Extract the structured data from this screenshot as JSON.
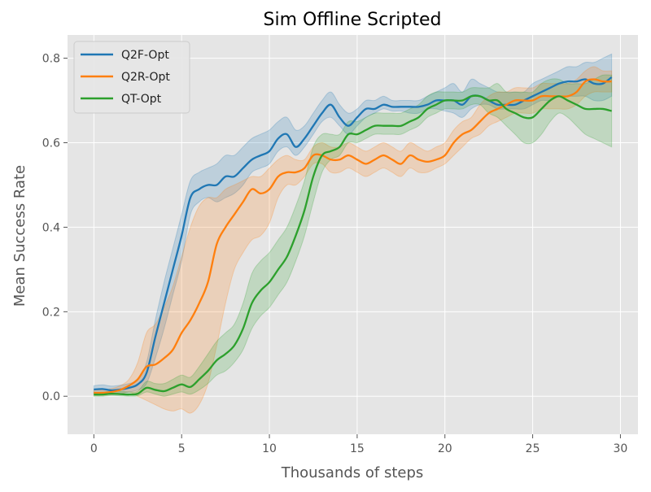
{
  "chart_data": {
    "type": "line",
    "title": "Sim Offline Scripted",
    "xlabel": "Thousands of steps",
    "ylabel": "Mean Success Rate",
    "xlim": [
      -1.5,
      31.0
    ],
    "ylim": [
      -0.09,
      0.855
    ],
    "xticks": [
      0,
      5,
      10,
      15,
      20,
      25,
      30
    ],
    "yticks": [
      0.0,
      0.2,
      0.4,
      0.6,
      0.8
    ],
    "xtick_labels": [
      "0",
      "5",
      "10",
      "15",
      "20",
      "25",
      "30"
    ],
    "ytick_labels": [
      "0.0",
      "0.2",
      "0.4",
      "0.6",
      "0.8"
    ],
    "grid": true,
    "legend_position": "top-left",
    "background": "#e5e5e5",
    "series": [
      {
        "name": "Q2F-Opt",
        "color": "#1f77b4",
        "x": [
          0,
          0.5,
          1,
          1.5,
          2,
          2.5,
          3,
          3.5,
          4,
          4.5,
          5,
          5.5,
          6,
          6.5,
          7,
          7.5,
          8,
          8.5,
          9,
          9.5,
          10,
          10.5,
          11,
          11.5,
          12,
          12.5,
          13,
          13.5,
          14,
          14.5,
          15,
          15.5,
          16,
          16.5,
          17,
          17.5,
          18,
          18.5,
          19,
          19.5,
          20,
          20.5,
          21,
          21.5,
          22,
          22.5,
          23,
          23.5,
          24,
          24.5,
          25,
          25.5,
          26,
          26.5,
          27,
          27.5,
          28,
          28.5,
          29,
          29.5
        ],
        "values": [
          0.016,
          0.017,
          0.014,
          0.016,
          0.02,
          0.028,
          0.055,
          0.14,
          0.22,
          0.3,
          0.38,
          0.47,
          0.49,
          0.5,
          0.5,
          0.52,
          0.52,
          0.54,
          0.56,
          0.57,
          0.58,
          0.61,
          0.62,
          0.59,
          0.61,
          0.64,
          0.67,
          0.69,
          0.66,
          0.64,
          0.66,
          0.68,
          0.68,
          0.69,
          0.685,
          0.685,
          0.685,
          0.685,
          0.69,
          0.7,
          0.7,
          0.7,
          0.69,
          0.71,
          0.71,
          0.7,
          0.69,
          0.69,
          0.69,
          0.7,
          0.71,
          0.72,
          0.73,
          0.74,
          0.745,
          0.745,
          0.75,
          0.74,
          0.74,
          0.755
        ],
        "lower": [
          0.005,
          0.006,
          0.004,
          0.006,
          0.01,
          0.015,
          0.03,
          0.09,
          0.16,
          0.24,
          0.32,
          0.43,
          0.46,
          0.47,
          0.46,
          0.47,
          0.48,
          0.5,
          0.53,
          0.54,
          0.55,
          0.58,
          0.59,
          0.57,
          0.59,
          0.62,
          0.65,
          0.66,
          0.64,
          0.62,
          0.64,
          0.66,
          0.67,
          0.68,
          0.675,
          0.675,
          0.67,
          0.67,
          0.68,
          0.68,
          0.675,
          0.67,
          0.66,
          0.68,
          0.69,
          0.69,
          0.68,
          0.68,
          0.68,
          0.68,
          0.69,
          0.7,
          0.7,
          0.71,
          0.71,
          0.71,
          0.71,
          0.7,
          0.7,
          0.71
        ],
        "upper": [
          0.025,
          0.027,
          0.024,
          0.026,
          0.03,
          0.04,
          0.08,
          0.18,
          0.27,
          0.35,
          0.43,
          0.51,
          0.53,
          0.54,
          0.55,
          0.57,
          0.57,
          0.59,
          0.61,
          0.62,
          0.63,
          0.65,
          0.66,
          0.63,
          0.64,
          0.67,
          0.7,
          0.72,
          0.69,
          0.67,
          0.68,
          0.7,
          0.7,
          0.71,
          0.7,
          0.7,
          0.7,
          0.7,
          0.71,
          0.72,
          0.73,
          0.74,
          0.72,
          0.75,
          0.74,
          0.73,
          0.72,
          0.72,
          0.72,
          0.72,
          0.74,
          0.75,
          0.76,
          0.77,
          0.78,
          0.78,
          0.79,
          0.79,
          0.8,
          0.81
        ]
      },
      {
        "name": "Q2R-Opt",
        "color": "#ff7f0e",
        "x": [
          0,
          0.5,
          1,
          1.5,
          2,
          2.5,
          3,
          3.5,
          4,
          4.5,
          5,
          5.5,
          6,
          6.5,
          7,
          7.5,
          8,
          8.5,
          9,
          9.5,
          10,
          10.5,
          11,
          11.5,
          12,
          12.5,
          13,
          13.5,
          14,
          14.5,
          15,
          15.5,
          16,
          16.5,
          17,
          17.5,
          18,
          18.5,
          19,
          19.5,
          20,
          20.5,
          21,
          21.5,
          22,
          22.5,
          23,
          23.5,
          24,
          24.5,
          25,
          25.5,
          26,
          26.5,
          27,
          27.5,
          28,
          28.5,
          29,
          29.5
        ],
        "values": [
          0.008,
          0.008,
          0.01,
          0.015,
          0.025,
          0.04,
          0.07,
          0.075,
          0.09,
          0.11,
          0.15,
          0.18,
          0.22,
          0.27,
          0.36,
          0.4,
          0.43,
          0.46,
          0.49,
          0.48,
          0.49,
          0.52,
          0.53,
          0.53,
          0.54,
          0.57,
          0.57,
          0.56,
          0.56,
          0.57,
          0.56,
          0.55,
          0.56,
          0.57,
          0.56,
          0.55,
          0.57,
          0.56,
          0.555,
          0.56,
          0.57,
          0.6,
          0.62,
          0.63,
          0.65,
          0.67,
          0.68,
          0.69,
          0.7,
          0.7,
          0.7,
          0.71,
          0.71,
          0.71,
          0.71,
          0.72,
          0.745,
          0.75,
          0.745,
          0.745
        ],
        "lower": [
          0.002,
          0.002,
          0.004,
          0.005,
          0.01,
          0.0,
          -0.01,
          -0.02,
          -0.03,
          -0.035,
          -0.03,
          -0.04,
          -0.02,
          0.03,
          0.12,
          0.22,
          0.3,
          0.34,
          0.37,
          0.38,
          0.41,
          0.47,
          0.5,
          0.5,
          0.52,
          0.55,
          0.55,
          0.53,
          0.53,
          0.54,
          0.53,
          0.52,
          0.53,
          0.54,
          0.53,
          0.52,
          0.54,
          0.53,
          0.53,
          0.54,
          0.55,
          0.57,
          0.59,
          0.61,
          0.62,
          0.64,
          0.65,
          0.66,
          0.67,
          0.67,
          0.67,
          0.68,
          0.68,
          0.68,
          0.68,
          0.69,
          0.71,
          0.72,
          0.72,
          0.72
        ],
        "upper": [
          0.015,
          0.015,
          0.018,
          0.025,
          0.04,
          0.08,
          0.15,
          0.17,
          0.21,
          0.26,
          0.33,
          0.4,
          0.45,
          0.47,
          0.47,
          0.49,
          0.5,
          0.51,
          0.52,
          0.52,
          0.54,
          0.56,
          0.57,
          0.56,
          0.56,
          0.59,
          0.6,
          0.59,
          0.59,
          0.6,
          0.59,
          0.58,
          0.59,
          0.6,
          0.59,
          0.58,
          0.6,
          0.59,
          0.58,
          0.59,
          0.6,
          0.63,
          0.65,
          0.66,
          0.69,
          0.71,
          0.72,
          0.72,
          0.73,
          0.73,
          0.73,
          0.74,
          0.74,
          0.74,
          0.74,
          0.75,
          0.77,
          0.78,
          0.77,
          0.77
        ]
      },
      {
        "name": "QT-Opt",
        "color": "#2ca02c",
        "x": [
          0,
          0.5,
          1,
          1.5,
          2,
          2.5,
          3,
          3.5,
          4,
          4.5,
          5,
          5.5,
          6,
          6.5,
          7,
          7.5,
          8,
          8.5,
          9,
          9.5,
          10,
          10.5,
          11,
          11.5,
          12,
          12.5,
          13,
          13.5,
          14,
          14.5,
          15,
          15.5,
          16,
          16.5,
          17,
          17.5,
          18,
          18.5,
          19,
          19.5,
          20,
          20.5,
          21,
          21.5,
          22,
          22.5,
          23,
          23.5,
          24,
          24.5,
          25,
          25.5,
          26,
          26.5,
          27,
          27.5,
          28,
          28.5,
          29,
          29.5
        ],
        "values": [
          0.004,
          0.004,
          0.006,
          0.005,
          0.004,
          0.006,
          0.02,
          0.015,
          0.012,
          0.02,
          0.028,
          0.022,
          0.04,
          0.06,
          0.085,
          0.1,
          0.12,
          0.16,
          0.22,
          0.25,
          0.27,
          0.3,
          0.33,
          0.38,
          0.44,
          0.52,
          0.57,
          0.58,
          0.59,
          0.62,
          0.62,
          0.63,
          0.64,
          0.64,
          0.64,
          0.64,
          0.65,
          0.66,
          0.68,
          0.69,
          0.7,
          0.7,
          0.7,
          0.71,
          0.71,
          0.7,
          0.7,
          0.68,
          0.67,
          0.66,
          0.66,
          0.68,
          0.7,
          0.71,
          0.7,
          0.69,
          0.68,
          0.68,
          0.68,
          0.675
        ],
        "lower": [
          0.0,
          0.0,
          0.002,
          0.001,
          0.0,
          0.001,
          0.01,
          0.005,
          0.0,
          0.005,
          0.01,
          0.005,
          0.015,
          0.03,
          0.05,
          0.06,
          0.08,
          0.11,
          0.16,
          0.19,
          0.21,
          0.24,
          0.27,
          0.32,
          0.38,
          0.46,
          0.53,
          0.56,
          0.57,
          0.6,
          0.6,
          0.61,
          0.62,
          0.62,
          0.62,
          0.62,
          0.63,
          0.64,
          0.66,
          0.67,
          0.68,
          0.68,
          0.68,
          0.69,
          0.69,
          0.67,
          0.66,
          0.64,
          0.62,
          0.6,
          0.6,
          0.62,
          0.65,
          0.67,
          0.66,
          0.64,
          0.62,
          0.61,
          0.6,
          0.59
        ],
        "upper": [
          0.01,
          0.01,
          0.012,
          0.012,
          0.01,
          0.012,
          0.035,
          0.03,
          0.03,
          0.04,
          0.05,
          0.045,
          0.07,
          0.1,
          0.13,
          0.15,
          0.17,
          0.22,
          0.29,
          0.32,
          0.34,
          0.37,
          0.4,
          0.45,
          0.51,
          0.59,
          0.62,
          0.62,
          0.62,
          0.65,
          0.65,
          0.66,
          0.67,
          0.67,
          0.67,
          0.67,
          0.68,
          0.69,
          0.71,
          0.72,
          0.72,
          0.72,
          0.72,
          0.73,
          0.73,
          0.73,
          0.74,
          0.72,
          0.72,
          0.72,
          0.72,
          0.74,
          0.75,
          0.75,
          0.74,
          0.74,
          0.74,
          0.75,
          0.76,
          0.76
        ]
      }
    ]
  }
}
